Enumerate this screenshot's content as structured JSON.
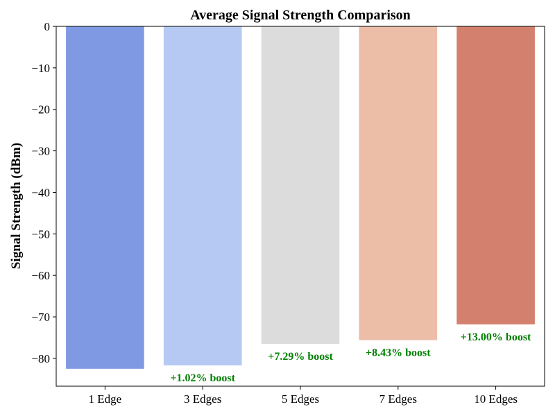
{
  "chart_data": {
    "type": "bar",
    "title": "Average Signal Strength Comparison",
    "xlabel": "",
    "ylabel": "Signal Strength (dBm)",
    "categories": [
      "1 Edge",
      "3 Edges",
      "5 Edges",
      "7 Edges",
      "10 Edges"
    ],
    "values": [
      -82.5,
      -81.7,
      -76.5,
      -75.6,
      -71.8
    ],
    "colors": [
      "#7f9ae3",
      "#b5c9f3",
      "#dcdcdc",
      "#ecbda7",
      "#d4806e"
    ],
    "annotations": [
      {
        "category": "3 Edges",
        "text": "+1.02% boost"
      },
      {
        "category": "5 Edges",
        "text": "+7.29% boost"
      },
      {
        "category": "7 Edges",
        "text": "+8.43% boost"
      },
      {
        "category": "10 Edges",
        "text": "+13.00% boost"
      }
    ],
    "annotation_color": "#008000",
    "ylim": [
      -86.7,
      0
    ],
    "yticks": [
      0,
      -10,
      -20,
      -30,
      -40,
      -50,
      -60,
      -70,
      -80
    ],
    "ytick_labels": [
      "0",
      "−10",
      "−20",
      "−30",
      "−40",
      "−50",
      "−60",
      "−70",
      "−80"
    ],
    "grid": false,
    "legend": "none"
  }
}
